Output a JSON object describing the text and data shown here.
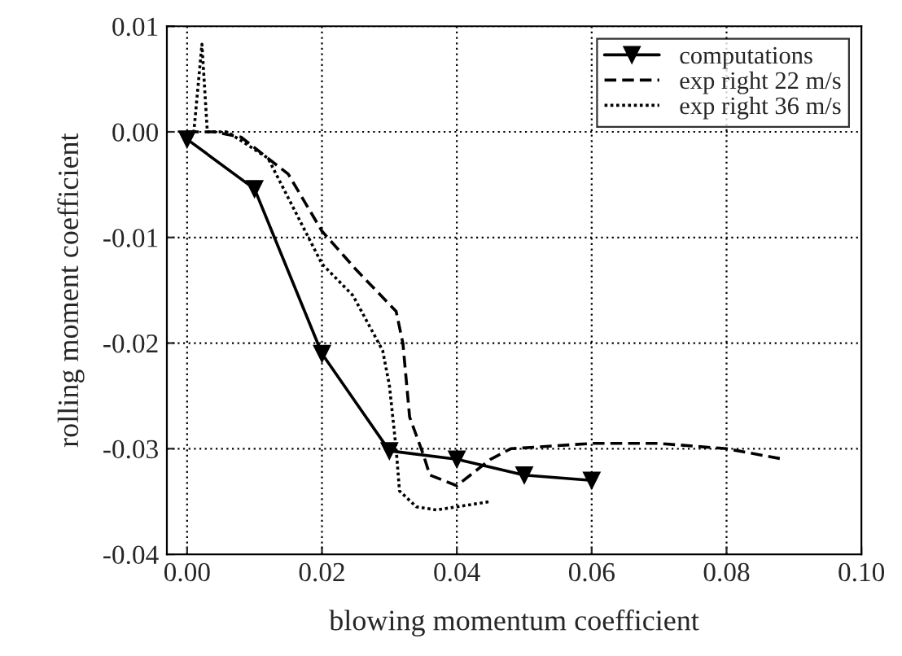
{
  "chart_data": {
    "type": "line",
    "xlabel": "blowing momentum coefficient",
    "ylabel": "rolling moment coefficient",
    "xlim": [
      -0.003,
      0.1
    ],
    "ylim": [
      -0.04,
      0.01
    ],
    "xticks": [
      {
        "value": 0,
        "label": "0.00"
      },
      {
        "value": 0.02,
        "label": "0.02"
      },
      {
        "value": 0.04,
        "label": "0.04"
      },
      {
        "value": 0.06,
        "label": "0.06"
      },
      {
        "value": 0.08,
        "label": "0.08"
      },
      {
        "value": 0.1,
        "label": "0.10"
      }
    ],
    "yticks": [
      {
        "value": -0.04,
        "label": "-0.04"
      },
      {
        "value": -0.03,
        "label": "-0.03"
      },
      {
        "value": -0.02,
        "label": "-0.02"
      },
      {
        "value": -0.01,
        "label": "-0.01"
      },
      {
        "value": 0,
        "label": "0.00"
      },
      {
        "value": 0.01,
        "label": "0.01"
      }
    ],
    "grid": true,
    "legend": "top right",
    "series": [
      {
        "name": "computations",
        "color": "#000000",
        "line_style": "solid",
        "marker": "triangle",
        "x": [
          0,
          0.01,
          0.02,
          0.03,
          0.04,
          0.05,
          0.06
        ],
        "values": [
          -0.0007,
          -0.0054,
          -0.021,
          -0.0302,
          -0.031,
          -0.0325,
          -0.033
        ]
      },
      {
        "name": "exp right 22 m/s",
        "color": "#000000",
        "line_style": "dashed",
        "marker": "none",
        "x": [
          0,
          0.004,
          0.008,
          0.015,
          0.02,
          0.025,
          0.031,
          0.032,
          0.033,
          0.035,
          0.036,
          0.04,
          0.045,
          0.048,
          0.06,
          0.07,
          0.08,
          0.0885
        ],
        "values": [
          0,
          0,
          -0.0005,
          -0.004,
          -0.0094,
          -0.013,
          -0.017,
          -0.02,
          -0.027,
          -0.0305,
          -0.0325,
          -0.0335,
          -0.031,
          -0.03,
          -0.0295,
          -0.0295,
          -0.03,
          -0.031
        ]
      },
      {
        "name": "exp right 36 m/s",
        "color": "#000000",
        "line_style": "dotted",
        "marker": "none",
        "x": [
          0,
          0.001,
          0.0022,
          0.003,
          0.006,
          0.012,
          0.02,
          0.0246,
          0.029,
          0.03,
          0.031,
          0.0315,
          0.034,
          0.037,
          0.04,
          0.045
        ],
        "values": [
          0,
          0,
          0.0083,
          0,
          0,
          -0.0025,
          -0.0125,
          -0.0155,
          -0.0207,
          -0.024,
          -0.03,
          -0.034,
          -0.0355,
          -0.0358,
          -0.0355,
          -0.035
        ]
      }
    ]
  }
}
